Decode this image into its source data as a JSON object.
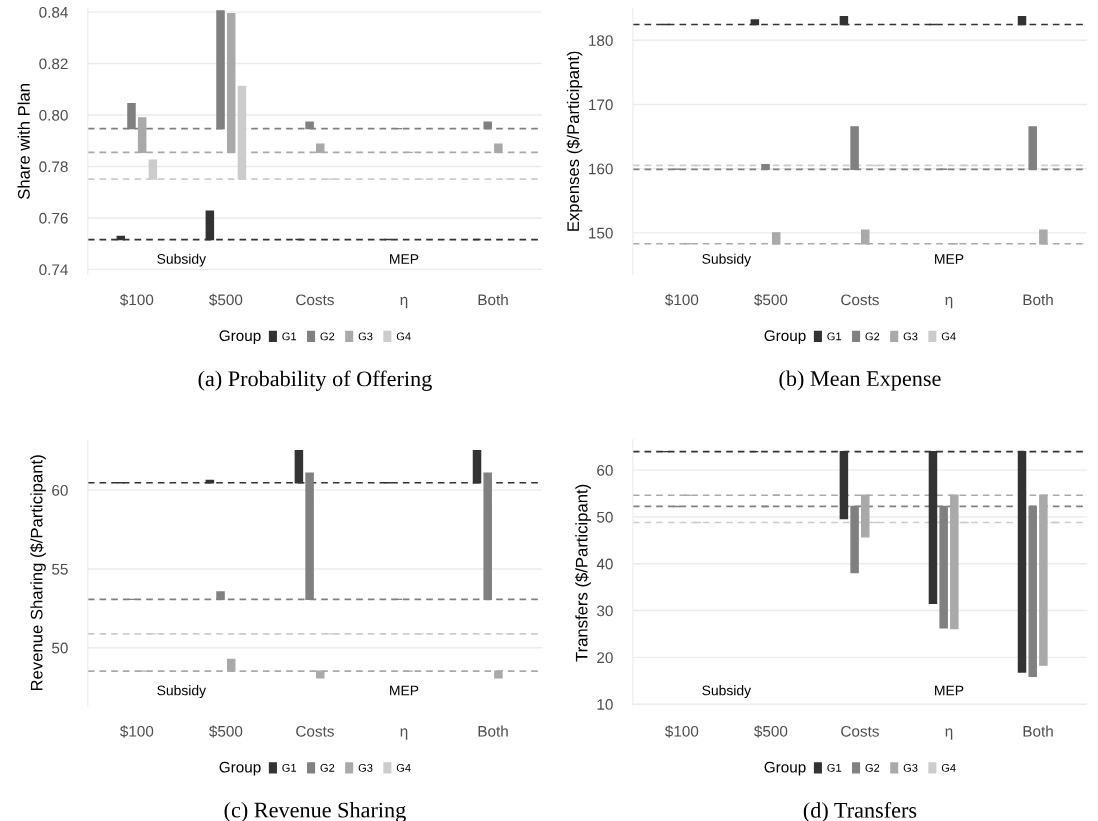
{
  "chart_data": [
    {
      "type": "bar",
      "title": "(a) Probability of Offering",
      "ylabel": "Share with Plan",
      "legend_title": "Group",
      "legend": "bottom",
      "grid": "y",
      "categories": [
        "$100",
        "$500",
        "Costs",
        "η",
        "Both"
      ],
      "annotations": [
        "Subsidy",
        "MEP"
      ],
      "ylim": [
        0.738,
        0.8415
      ],
      "yticks": [
        {
          "value": 0.74,
          "label": "0.74"
        },
        {
          "value": 0.76,
          "label": "0.76"
        },
        {
          "value": 0.78,
          "label": "0.78"
        },
        {
          "value": 0.8,
          "label": "0.80"
        },
        {
          "value": 0.82,
          "label": "0.82"
        },
        {
          "value": 0.84,
          "label": "0.84"
        }
      ],
      "series": [
        {
          "name": "G1",
          "color": "#333333",
          "base": [
            0.7516,
            0.7516,
            0.7516,
            0.7516,
            0.7516
          ],
          "values": [
            0.0012,
            0.011,
            0,
            0,
            0
          ]
        },
        {
          "name": "G2",
          "color": "#808080",
          "base": [
            0.7947,
            0.7947,
            0.7947,
            0.7947,
            0.7947
          ],
          "values": [
            0.0097,
            0.0457,
            0.0025,
            0,
            0.0025
          ]
        },
        {
          "name": "G3",
          "color": "#a9a9a9",
          "base": [
            0.7855,
            0.7855,
            0.7855,
            0.7855,
            0.7855
          ],
          "values": [
            0.0134,
            0.0539,
            0.0032,
            0,
            0.0032
          ]
        },
        {
          "name": "G4",
          "color": "#cccccc",
          "base": [
            0.7751,
            0.7751,
            0.7751,
            0.7751,
            0.7751
          ],
          "values": [
            0.0073,
            0.036,
            0,
            0,
            0
          ]
        }
      ],
      "ref_lines": [
        {
          "axis": "y",
          "value": 0.7516,
          "color": "#333333",
          "line_style": "dashed"
        },
        {
          "axis": "y",
          "value": 0.7947,
          "color": "#808080",
          "line_style": "dashed"
        },
        {
          "axis": "y",
          "value": 0.7855,
          "color": "#a9a9a9",
          "line_style": "dashed"
        },
        {
          "axis": "y",
          "value": 0.7751,
          "color": "#cccccc",
          "line_style": "dashed"
        }
      ]
    },
    {
      "type": "bar",
      "title": "(b) Mean Expense",
      "ylabel": "Expenses ($/Participant)",
      "legend_title": "Group",
      "legend": "bottom",
      "grid": "y",
      "categories": [
        "$100",
        "$500",
        "Costs",
        "η",
        "Both"
      ],
      "annotations": [
        "Subsidy",
        "MEP"
      ],
      "ylim": [
        143.5,
        185
      ],
      "yticks": [
        150,
        160,
        170,
        180
      ],
      "series": [
        {
          "name": "G1",
          "color": "#333333",
          "base": [
            182.46,
            182.46,
            182.46,
            182.46,
            182.46
          ],
          "values": [
            0,
            0.7,
            1.2,
            0,
            1.2
          ]
        },
        {
          "name": "G2",
          "color": "#808080",
          "base": [
            159.9,
            159.9,
            159.9,
            159.9,
            159.9
          ],
          "values": [
            0,
            0.7,
            6.6,
            0,
            6.6
          ]
        },
        {
          "name": "G3",
          "color": "#a9a9a9",
          "base": [
            148.3,
            148.3,
            148.3,
            148.3,
            148.3
          ],
          "values": [
            0,
            1.7,
            2.1,
            0,
            2.1
          ]
        },
        {
          "name": "G4",
          "color": "#cccccc",
          "base": [
            160.5,
            160.5,
            160.5,
            160.5,
            160.5
          ],
          "values": [
            0,
            0,
            0,
            0,
            0
          ]
        }
      ],
      "ref_lines": [
        {
          "axis": "y",
          "value": 182.46,
          "color": "#333333",
          "line_style": "dashed"
        },
        {
          "axis": "y",
          "value": 159.9,
          "color": "#808080",
          "line_style": "dashed"
        },
        {
          "axis": "y",
          "value": 148.3,
          "color": "#a9a9a9",
          "line_style": "dashed"
        },
        {
          "axis": "y",
          "value": 160.5,
          "color": "#cccccc",
          "line_style": "dashed"
        }
      ]
    },
    {
      "type": "bar",
      "title": "(c) Revenue Sharing",
      "ylabel": "Revenue Sharing ($/Participant)",
      "legend_title": "Group",
      "legend": "bottom",
      "grid": "y",
      "categories": [
        "$100",
        "$500",
        "Costs",
        "η",
        "Both"
      ],
      "annotations": [
        "Subsidy",
        "MEP"
      ],
      "ylim": [
        46.3,
        63.2
      ],
      "yticks": [
        50,
        55,
        60
      ],
      "series": [
        {
          "name": "G1",
          "color": "#333333",
          "base": [
            60.47,
            60.47,
            60.47,
            60.47,
            60.47
          ],
          "values": [
            0,
            0.14,
            2.03,
            0,
            2.03
          ]
        },
        {
          "name": "G2",
          "color": "#808080",
          "base": [
            53.07,
            53.07,
            53.07,
            53.07,
            53.07
          ],
          "values": [
            0,
            0.47,
            8.0,
            0,
            8.0
          ]
        },
        {
          "name": "G3",
          "color": "#a9a9a9",
          "base": [
            48.52,
            48.52,
            48.52,
            48.52,
            48.52
          ],
          "values": [
            0,
            0.73,
            -0.42,
            0,
            -0.42
          ]
        },
        {
          "name": "G4",
          "color": "#cccccc",
          "base": [
            50.88,
            50.88,
            50.88,
            50.88,
            50.88
          ],
          "values": [
            0,
            0,
            0,
            0,
            0
          ]
        }
      ],
      "ref_lines": [
        {
          "axis": "y",
          "value": 60.47,
          "color": "#333333",
          "line_style": "dashed"
        },
        {
          "axis": "y",
          "value": 53.07,
          "color": "#808080",
          "line_style": "dashed"
        },
        {
          "axis": "y",
          "value": 48.52,
          "color": "#a9a9a9",
          "line_style": "dashed"
        },
        {
          "axis": "y",
          "value": 50.88,
          "color": "#cccccc",
          "line_style": "dashed"
        }
      ]
    },
    {
      "type": "bar",
      "title": "(d) Transfers",
      "ylabel": "Transfers ($/Participant)",
      "legend_title": "Group",
      "legend": "bottom",
      "grid": "y",
      "categories": [
        "$100",
        "$500",
        "Costs",
        "η",
        "Both"
      ],
      "annotations": [
        "Subsidy",
        "MEP"
      ],
      "ylim": [
        9.6,
        66.5
      ],
      "yticks": [
        10,
        20,
        30,
        40,
        50,
        60
      ],
      "series": [
        {
          "name": "G1",
          "color": "#333333",
          "base": [
            63.96,
            63.96,
            63.96,
            63.96,
            63.96
          ],
          "values": [
            0,
            0,
            -14.3,
            -32.4,
            -47.1
          ]
        },
        {
          "name": "G2",
          "color": "#808080",
          "base": [
            52.24,
            52.24,
            52.24,
            52.24,
            52.24
          ],
          "values": [
            0,
            0,
            -14.1,
            -25.9,
            -36.3
          ]
        },
        {
          "name": "G3",
          "color": "#a9a9a9",
          "base": [
            54.64,
            54.64,
            54.64,
            54.64,
            54.64
          ],
          "values": [
            0,
            0,
            -8.9,
            -28.5,
            -36.3
          ]
        },
        {
          "name": "G4",
          "color": "#cccccc",
          "base": [
            48.82,
            48.82,
            48.82,
            48.82,
            48.82
          ],
          "values": [
            0,
            0,
            0,
            0,
            0
          ]
        }
      ],
      "ref_lines": [
        {
          "axis": "y",
          "value": 63.96,
          "color": "#333333",
          "line_style": "dashed"
        },
        {
          "axis": "y",
          "value": 52.24,
          "color": "#808080",
          "line_style": "dashed"
        },
        {
          "axis": "y",
          "value": 54.64,
          "color": "#a9a9a9",
          "line_style": "dashed"
        },
        {
          "axis": "y",
          "value": 48.82,
          "color": "#cccccc",
          "line_style": "dashed"
        }
      ]
    }
  ]
}
